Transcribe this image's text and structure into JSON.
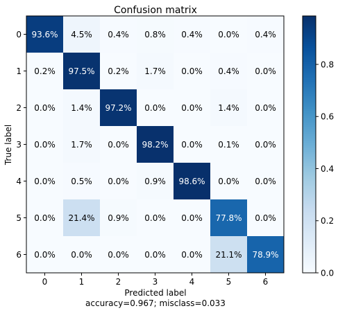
{
  "chart_data": {
    "type": "heatmap",
    "title": "Confusion matrix",
    "xlabel": "Predicted label",
    "ylabel": "True label",
    "footer": "accuracy=0.967; misclass=0.033",
    "x_ticks": [
      "0",
      "1",
      "2",
      "3",
      "4",
      "5",
      "6"
    ],
    "y_ticks": [
      "0",
      "1",
      "2",
      "3",
      "4",
      "5",
      "6"
    ],
    "values": [
      [
        0.936,
        0.045,
        0.004,
        0.008,
        0.004,
        0.0,
        0.004
      ],
      [
        0.002,
        0.975,
        0.002,
        0.017,
        0.0,
        0.004,
        0.0
      ],
      [
        0.0,
        0.014,
        0.972,
        0.0,
        0.0,
        0.014,
        0.0
      ],
      [
        0.0,
        0.017,
        0.0,
        0.982,
        0.0,
        0.001,
        0.0
      ],
      [
        0.0,
        0.005,
        0.0,
        0.009,
        0.986,
        0.0,
        0.0
      ],
      [
        0.0,
        0.214,
        0.009,
        0.0,
        0.0,
        0.778,
        0.0
      ],
      [
        0.0,
        0.0,
        0.0,
        0.0,
        0.0,
        0.211,
        0.789
      ]
    ],
    "labels": [
      [
        "93.6%",
        "4.5%",
        "0.4%",
        "0.8%",
        "0.4%",
        "0.0%",
        "0.4%"
      ],
      [
        "0.2%",
        "97.5%",
        "0.2%",
        "1.7%",
        "0.0%",
        "0.4%",
        "0.0%"
      ],
      [
        "0.0%",
        "1.4%",
        "97.2%",
        "0.0%",
        "0.0%",
        "1.4%",
        "0.0%"
      ],
      [
        "0.0%",
        "1.7%",
        "0.0%",
        "98.2%",
        "0.0%",
        "0.1%",
        "0.0%"
      ],
      [
        "0.0%",
        "0.5%",
        "0.0%",
        "0.9%",
        "98.6%",
        "0.0%",
        "0.0%"
      ],
      [
        "0.0%",
        "21.4%",
        "0.9%",
        "0.0%",
        "0.0%",
        "77.8%",
        "0.0%"
      ],
      [
        "0.0%",
        "0.0%",
        "0.0%",
        "0.0%",
        "0.0%",
        "21.1%",
        "78.9%"
      ]
    ],
    "colormap": "Blues",
    "colorbar": {
      "range": [
        0.0,
        0.986
      ],
      "ticks": [
        0.0,
        0.2,
        0.4,
        0.6,
        0.8
      ],
      "tick_labels": [
        "0.0",
        "0.2",
        "0.4",
        "0.6",
        "0.8"
      ]
    },
    "text_threshold": 0.493
  }
}
